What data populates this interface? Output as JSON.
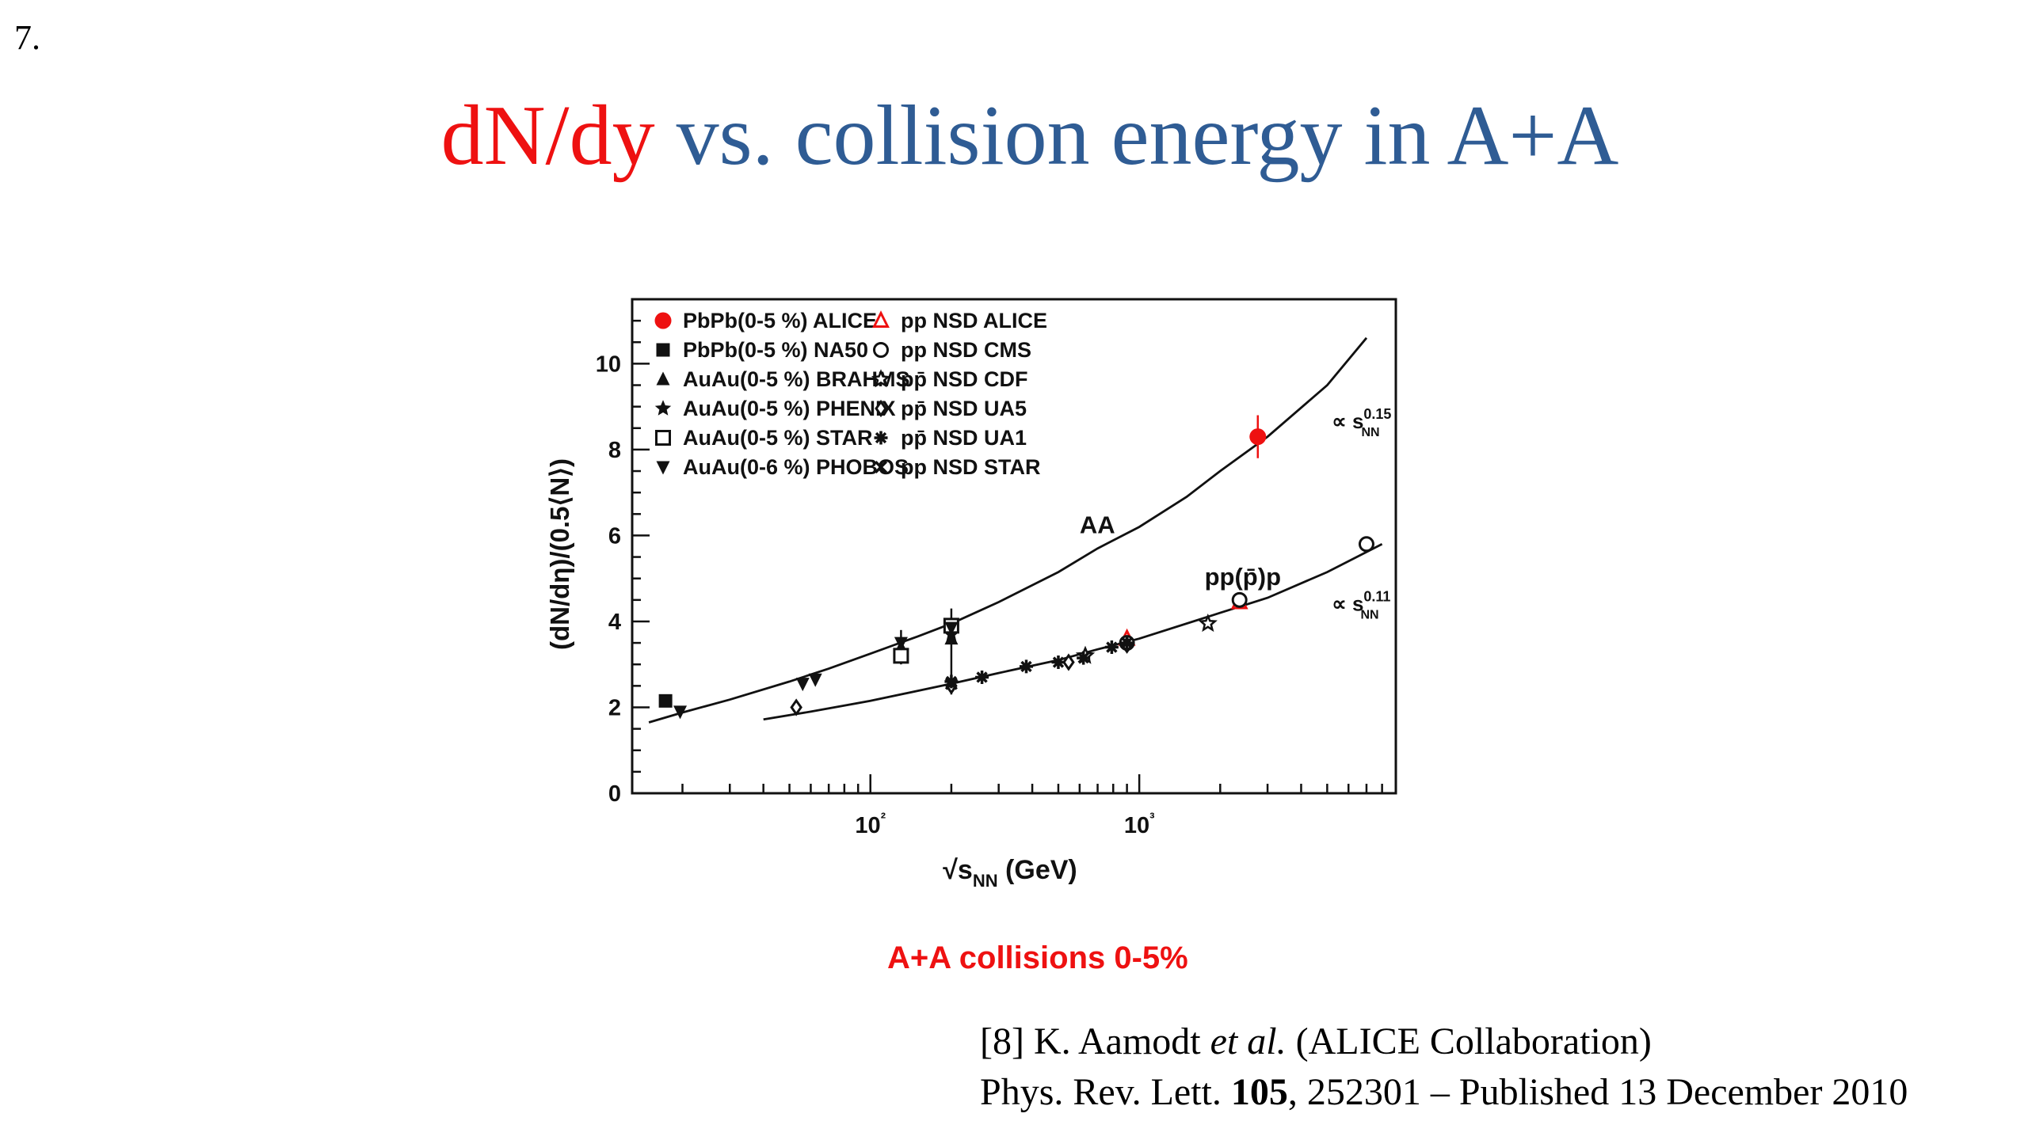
{
  "slide": {
    "number": "7.",
    "title_red": "dN/dy",
    "title_rest": " vs. collision energy in A+A",
    "subtitle": "A+A collisions 0-5%",
    "reference": {
      "line1_prefix": "[8] K. Aamodt ",
      "line1_italic": "et al.",
      "line1_suffix": " (ALICE Collaboration)",
      "line2_prefix": "Phys. Rev. Lett. ",
      "line2_bold": "105",
      "line2_suffix": ", 252301 – Published 13 December 2010"
    },
    "colors": {
      "title_blue": "#2f5c94",
      "accent_red": "#ee1111"
    }
  },
  "chart_data": {
    "type": "scatter",
    "xscale": "log",
    "xlim": [
      13,
      9000
    ],
    "ylim": [
      0,
      11.5
    ],
    "xlabel_prefix": "√s",
    "xlabel_sub": "NN",
    "xlabel_unit": " (GeV)",
    "ylabel": "(dN/dη)/(0.5⟨N⟩)",
    "xticks": [
      {
        "value": 100,
        "label": "10²"
      },
      {
        "value": 1000,
        "label": "10³"
      }
    ],
    "yticks": [
      0,
      2,
      4,
      6,
      8,
      10
    ],
    "legend_position": "top-left",
    "series": [
      {
        "name": "PbPb(0-5 %) ALICE",
        "marker": "circle-filled",
        "color": "#ee1111",
        "points": [
          [
            2760,
            8.3
          ]
        ]
      },
      {
        "name": "PbPb(0-5 %) NA50",
        "marker": "square-filled",
        "color": "#111111",
        "points": [
          [
            17.3,
            2.15
          ]
        ]
      },
      {
        "name": "AuAu(0-5 %) BRAHMS",
        "marker": "triangle-filled",
        "color": "#111111",
        "points": [
          [
            130,
            3.4
          ],
          [
            200,
            3.6
          ]
        ]
      },
      {
        "name": "AuAu(0-5 %) PHENIX",
        "marker": "star-filled",
        "color": "#111111",
        "points": [
          [
            130,
            3.3
          ],
          [
            200,
            3.7
          ]
        ]
      },
      {
        "name": "AuAu(0-5 %) STAR",
        "marker": "square-open",
        "color": "#111111",
        "points": [
          [
            130,
            3.2
          ],
          [
            200,
            3.9
          ]
        ]
      },
      {
        "name": "AuAu(0-6 %) PHOBOS",
        "marker": "triangle-down-filled",
        "color": "#111111",
        "points": [
          [
            19.6,
            1.9
          ],
          [
            56,
            2.55
          ],
          [
            62.4,
            2.65
          ],
          [
            130,
            3.5
          ],
          [
            200,
            3.85
          ]
        ]
      },
      {
        "name": "pp NSD ALICE",
        "marker": "triangle-open",
        "color": "#ee1111",
        "points": [
          [
            900,
            3.6
          ],
          [
            2360,
            4.45
          ]
        ]
      },
      {
        "name": "pp NSD CMS",
        "marker": "circle-open",
        "color": "#111111",
        "points": [
          [
            900,
            3.5
          ],
          [
            2360,
            4.5
          ],
          [
            7000,
            5.8
          ]
        ]
      },
      {
        "name": "pp̄ NSD CDF",
        "marker": "star-open",
        "color": "#111111",
        "points": [
          [
            630,
            3.2
          ],
          [
            1800,
            3.95
          ]
        ]
      },
      {
        "name": "pp̄ NSD UA5",
        "marker": "diamond-open",
        "color": "#111111",
        "points": [
          [
            53,
            2.0
          ],
          [
            200,
            2.5
          ],
          [
            546,
            3.05
          ],
          [
            900,
            3.45
          ]
        ]
      },
      {
        "name": "pp̄ NSD UA1",
        "marker": "asterisk",
        "color": "#111111",
        "points": [
          [
            200,
            2.6
          ],
          [
            260,
            2.7
          ],
          [
            380,
            2.95
          ],
          [
            500,
            3.05
          ],
          [
            620,
            3.15
          ],
          [
            790,
            3.4
          ],
          [
            900,
            3.5
          ]
        ]
      },
      {
        "name": "pp NSD STAR",
        "marker": "cross",
        "color": "#111111",
        "points": [
          [
            200,
            2.55
          ]
        ]
      }
    ],
    "curves": [
      {
        "label": "AA",
        "fit_label": "∝ s",
        "fit_sub": "NN",
        "fit_exp": "0.15",
        "x": [
          15,
          20,
          30,
          50,
          70,
          100,
          150,
          200,
          300,
          500,
          700,
          1000,
          1500,
          2000,
          3000,
          5000,
          7000
        ],
        "y": [
          1.65,
          1.88,
          2.18,
          2.6,
          2.9,
          3.25,
          3.65,
          3.95,
          4.45,
          5.15,
          5.7,
          6.2,
          6.9,
          7.5,
          8.3,
          9.5,
          10.6
        ]
      },
      {
        "label": "pp(p̄)p",
        "fit_label": "∝ s",
        "fit_sub": "NN",
        "fit_exp": "0.11",
        "x": [
          40,
          60,
          100,
          200,
          300,
          500,
          700,
          1000,
          2000,
          3000,
          5000,
          8000
        ],
        "y": [
          1.72,
          1.9,
          2.15,
          2.55,
          2.8,
          3.1,
          3.35,
          3.6,
          4.2,
          4.55,
          5.15,
          5.8
        ]
      }
    ]
  }
}
